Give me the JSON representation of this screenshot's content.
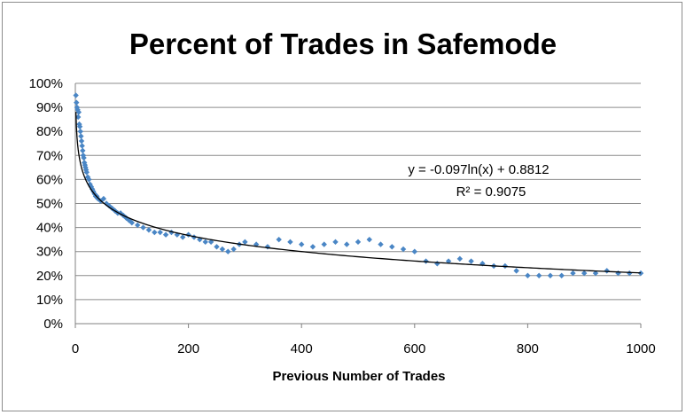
{
  "chart_data": {
    "type": "scatter",
    "title": "Percent of Trades in Safemode",
    "xlabel": "Previous Number of Trades",
    "ylabel": "",
    "xlim": [
      0,
      1000
    ],
    "ylim": [
      0,
      1
    ],
    "x_ticks": [
      "0",
      "200",
      "400",
      "600",
      "800",
      "1000"
    ],
    "y_ticks": [
      "0%",
      "10%",
      "20%",
      "30%",
      "40%",
      "50%",
      "60%",
      "70%",
      "80%",
      "90%",
      "100%"
    ],
    "grid": "horizontal",
    "legend": "none",
    "series": [
      {
        "points": [
          [
            1,
            0.95
          ],
          [
            2,
            0.92
          ],
          [
            3,
            0.9
          ],
          [
            4,
            0.89
          ],
          [
            5,
            0.86
          ],
          [
            6,
            0.88
          ],
          [
            7,
            0.83
          ],
          [
            8,
            0.82
          ],
          [
            9,
            0.8
          ],
          [
            10,
            0.78
          ],
          [
            11,
            0.76
          ],
          [
            12,
            0.74
          ],
          [
            13,
            0.72
          ],
          [
            14,
            0.7
          ],
          [
            15,
            0.69
          ],
          [
            16,
            0.67
          ],
          [
            17,
            0.66
          ],
          [
            18,
            0.65
          ],
          [
            19,
            0.64
          ],
          [
            20,
            0.63
          ],
          [
            22,
            0.61
          ],
          [
            24,
            0.6
          ],
          [
            26,
            0.58
          ],
          [
            28,
            0.57
          ],
          [
            30,
            0.56
          ],
          [
            32,
            0.55
          ],
          [
            34,
            0.54
          ],
          [
            36,
            0.53
          ],
          [
            38,
            0.53
          ],
          [
            40,
            0.52
          ],
          [
            45,
            0.51
          ],
          [
            50,
            0.52
          ],
          [
            55,
            0.5
          ],
          [
            60,
            0.49
          ],
          [
            65,
            0.48
          ],
          [
            70,
            0.47
          ],
          [
            75,
            0.46
          ],
          [
            80,
            0.46
          ],
          [
            85,
            0.45
          ],
          [
            90,
            0.44
          ],
          [
            95,
            0.43
          ],
          [
            100,
            0.42
          ],
          [
            110,
            0.41
          ],
          [
            120,
            0.4
          ],
          [
            130,
            0.39
          ],
          [
            140,
            0.38
          ],
          [
            150,
            0.38
          ],
          [
            160,
            0.37
          ],
          [
            170,
            0.38
          ],
          [
            180,
            0.37
          ],
          [
            190,
            0.36
          ],
          [
            200,
            0.37
          ],
          [
            210,
            0.36
          ],
          [
            220,
            0.35
          ],
          [
            230,
            0.34
          ],
          [
            240,
            0.34
          ],
          [
            250,
            0.32
          ],
          [
            260,
            0.31
          ],
          [
            270,
            0.3
          ],
          [
            280,
            0.31
          ],
          [
            290,
            0.33
          ],
          [
            300,
            0.34
          ],
          [
            320,
            0.33
          ],
          [
            340,
            0.32
          ],
          [
            360,
            0.35
          ],
          [
            380,
            0.34
          ],
          [
            400,
            0.33
          ],
          [
            420,
            0.32
          ],
          [
            440,
            0.33
          ],
          [
            460,
            0.34
          ],
          [
            480,
            0.33
          ],
          [
            500,
            0.34
          ],
          [
            520,
            0.35
          ],
          [
            540,
            0.33
          ],
          [
            560,
            0.32
          ],
          [
            580,
            0.31
          ],
          [
            600,
            0.3
          ],
          [
            620,
            0.26
          ],
          [
            640,
            0.25
          ],
          [
            660,
            0.26
          ],
          [
            680,
            0.27
          ],
          [
            700,
            0.26
          ],
          [
            720,
            0.25
          ],
          [
            740,
            0.24
          ],
          [
            760,
            0.24
          ],
          [
            780,
            0.22
          ],
          [
            800,
            0.2
          ],
          [
            820,
            0.2
          ],
          [
            840,
            0.2
          ],
          [
            860,
            0.2
          ],
          [
            880,
            0.21
          ],
          [
            900,
            0.21
          ],
          [
            920,
            0.21
          ],
          [
            940,
            0.22
          ],
          [
            960,
            0.21
          ],
          [
            980,
            0.21
          ],
          [
            1000,
            0.21
          ]
        ],
        "color": "#4a86c5"
      }
    ],
    "trendline": {
      "type": "log",
      "a": -0.097,
      "b": 0.8812,
      "color": "#000000",
      "equation_label": "y = -0.097ln(x) + 0.8812",
      "r2_label": "R² = 0.9075"
    }
  }
}
